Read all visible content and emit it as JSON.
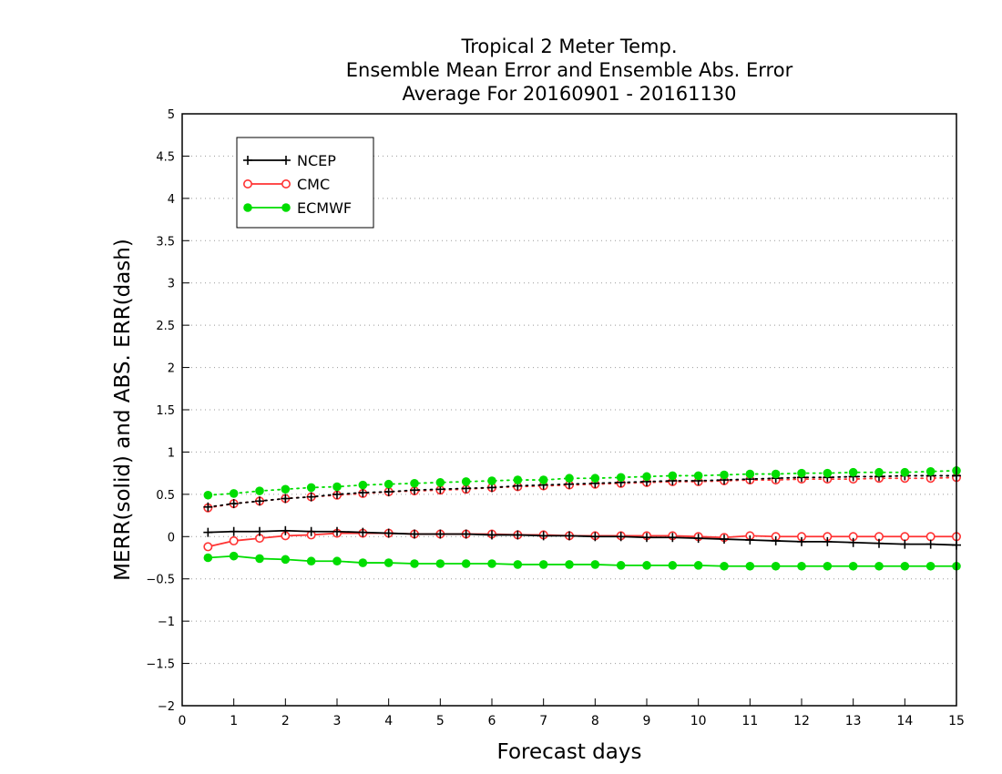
{
  "chart_data": {
    "type": "line",
    "title": [
      "Tropical 2 Meter Temp.",
      "Ensemble Mean Error and Ensemble Abs. Error",
      "Average For 20160901 - 20161130"
    ],
    "xlabel": "Forecast days",
    "ylabel": "MERR(solid) and ABS. ERR(dash)",
    "xlim": [
      0,
      15
    ],
    "ylim": [
      -2,
      5
    ],
    "xticks": [
      0,
      1,
      2,
      3,
      4,
      5,
      6,
      7,
      8,
      9,
      10,
      11,
      12,
      13,
      14,
      15
    ],
    "yticks": [
      -2,
      -1.5,
      -1,
      -0.5,
      0,
      0.5,
      1,
      1.5,
      2,
      2.5,
      3,
      3.5,
      4,
      4.5,
      5
    ],
    "ytick_labels": [
      "−2",
      "−1.5",
      "−1",
      "−0.5",
      "0",
      "0.5",
      "1",
      "1.5",
      "2",
      "2.5",
      "3",
      "3.5",
      "4",
      "4.5",
      "5"
    ],
    "grid": "horizontal dotted",
    "legend_position": "top-left",
    "x": [
      0.5,
      1,
      1.5,
      2,
      2.5,
      3,
      3.5,
      4,
      4.5,
      5,
      5.5,
      6,
      6.5,
      7,
      7.5,
      8,
      8.5,
      9,
      9.5,
      10,
      10.5,
      11,
      11.5,
      12,
      12.5,
      13,
      13.5,
      14,
      14.5,
      15
    ],
    "series": [
      {
        "name": "NCEP",
        "color": "#000000",
        "marker": "plus",
        "mean_error": [
          0.05,
          0.06,
          0.06,
          0.07,
          0.06,
          0.06,
          0.05,
          0.04,
          0.03,
          0.03,
          0.03,
          0.02,
          0.02,
          0.01,
          0.01,
          0.0,
          0.0,
          -0.01,
          -0.01,
          -0.02,
          -0.03,
          -0.04,
          -0.05,
          -0.06,
          -0.06,
          -0.07,
          -0.08,
          -0.09,
          -0.09,
          -0.1
        ],
        "abs_error": [
          0.35,
          0.39,
          0.42,
          0.45,
          0.47,
          0.5,
          0.52,
          0.53,
          0.55,
          0.56,
          0.57,
          0.58,
          0.6,
          0.61,
          0.62,
          0.63,
          0.64,
          0.65,
          0.66,
          0.66,
          0.67,
          0.68,
          0.69,
          0.7,
          0.7,
          0.71,
          0.71,
          0.72,
          0.72,
          0.72
        ]
      },
      {
        "name": "CMC",
        "color": "#ff3333",
        "marker": "open-circle",
        "mean_error": [
          -0.12,
          -0.05,
          -0.02,
          0.01,
          0.02,
          0.04,
          0.04,
          0.04,
          0.03,
          0.03,
          0.03,
          0.03,
          0.02,
          0.02,
          0.01,
          0.01,
          0.01,
          0.01,
          0.01,
          0.0,
          -0.01,
          0.01,
          0.0,
          0.0,
          0.0,
          0.0,
          0.0,
          0.0,
          0.0,
          0.0
        ],
        "abs_error": [
          0.34,
          0.39,
          0.42,
          0.45,
          0.47,
          0.49,
          0.51,
          0.53,
          0.54,
          0.55,
          0.56,
          0.58,
          0.59,
          0.6,
          0.61,
          0.62,
          0.63,
          0.64,
          0.65,
          0.65,
          0.66,
          0.67,
          0.67,
          0.68,
          0.68,
          0.68,
          0.69,
          0.69,
          0.69,
          0.7
        ]
      },
      {
        "name": "ECMWF",
        "color": "#00dd00",
        "marker": "filled-circle",
        "mean_error": [
          -0.25,
          -0.23,
          -0.26,
          -0.27,
          -0.29,
          -0.29,
          -0.31,
          -0.31,
          -0.32,
          -0.32,
          -0.32,
          -0.32,
          -0.33,
          -0.33,
          -0.33,
          -0.33,
          -0.34,
          -0.34,
          -0.34,
          -0.34,
          -0.35,
          -0.35,
          -0.35,
          -0.35,
          -0.35,
          -0.35,
          -0.35,
          -0.35,
          -0.35,
          -0.35
        ],
        "abs_error": [
          0.49,
          0.51,
          0.54,
          0.56,
          0.58,
          0.59,
          0.61,
          0.62,
          0.63,
          0.64,
          0.65,
          0.66,
          0.67,
          0.67,
          0.69,
          0.69,
          0.7,
          0.71,
          0.72,
          0.72,
          0.73,
          0.74,
          0.74,
          0.75,
          0.75,
          0.76,
          0.76,
          0.76,
          0.77,
          0.78
        ]
      }
    ]
  }
}
